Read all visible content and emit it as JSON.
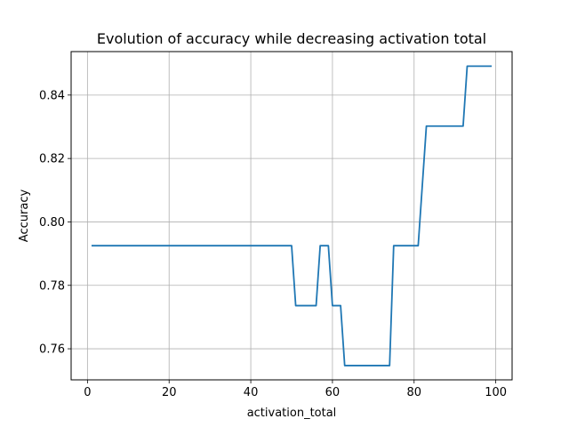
{
  "chart_data": {
    "type": "line",
    "title": "Evolution of accuracy while decreasing activation total",
    "xlabel": "activation_total",
    "ylabel": "Accuracy",
    "xlim": [
      -4,
      104
    ],
    "ylim": [
      0.7502,
      0.8537
    ],
    "xticks": [
      0,
      20,
      40,
      60,
      80,
      100
    ],
    "yticks": [
      0.76,
      0.78,
      0.8,
      0.82,
      0.84
    ],
    "xtick_labels": [
      "0",
      "20",
      "40",
      "60",
      "80",
      "100"
    ],
    "ytick_labels": [
      "0.76",
      "0.78",
      "0.80",
      "0.82",
      "0.84"
    ],
    "grid": true,
    "line_color": "#1f77b4",
    "series": [
      {
        "x": [
          1,
          50,
          51,
          56,
          57,
          59,
          60,
          62,
          63,
          74,
          75,
          81,
          83,
          92,
          93,
          99
        ],
        "y": [
          0.7925,
          0.7925,
          0.7736,
          0.7736,
          0.7925,
          0.7925,
          0.7736,
          0.7736,
          0.7547,
          0.7547,
          0.7925,
          0.7925,
          0.8302,
          0.8302,
          0.8491,
          0.8491
        ]
      }
    ]
  }
}
